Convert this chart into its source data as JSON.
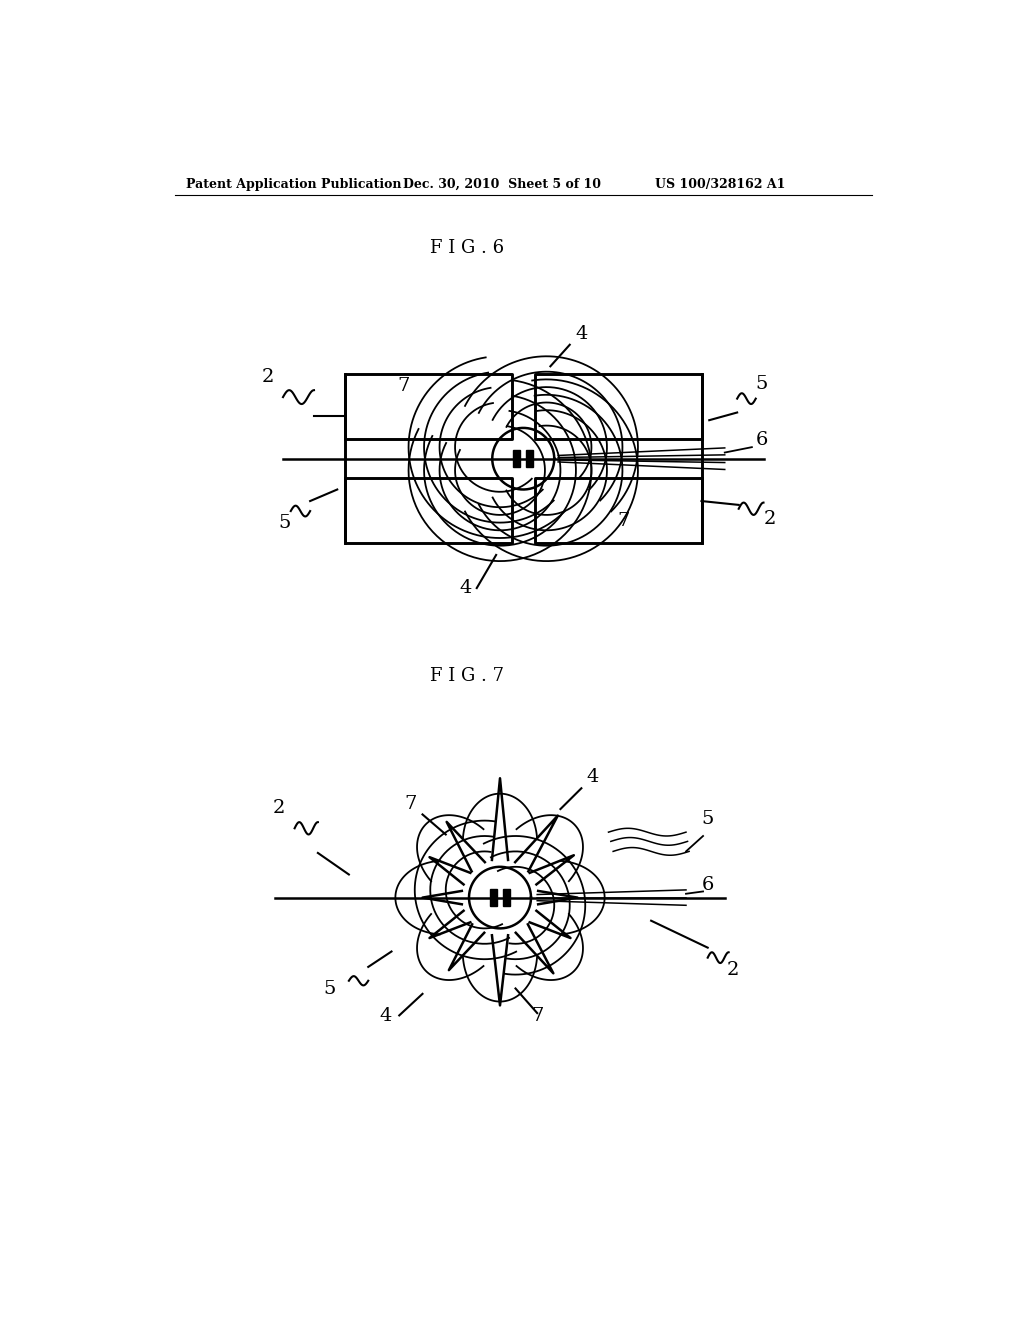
{
  "bg_color": "#ffffff",
  "line_color": "#000000",
  "fig_width": 10.24,
  "fig_height": 13.2,
  "header_left": "Patent Application Publication",
  "header_mid": "Dec. 30, 2010  Sheet 5 of 10",
  "header_right": "US 100/328162 A1",
  "fig6_title": "F I G . 6",
  "fig7_title": "F I G . 7"
}
